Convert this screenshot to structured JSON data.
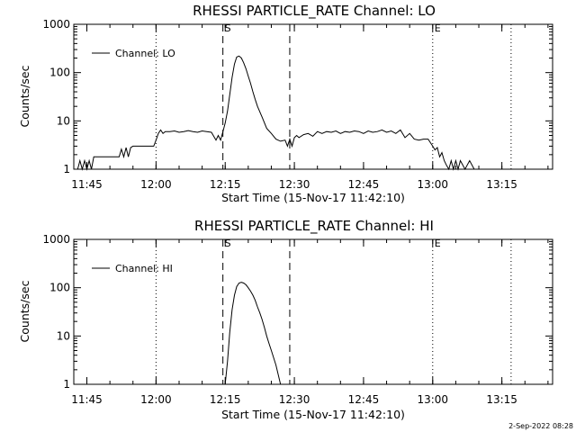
{
  "footer_date": "2-Sep-2022 08:28",
  "chart_data": [
    {
      "type": "line",
      "title": "RHESSI PARTICLE_RATE Channel: LO",
      "xlabel": "Start Time (15-Nov-17 11:42:10)",
      "ylabel": "Counts/sec",
      "y_scale": "log",
      "ylim": [
        1,
        1000
      ],
      "xlim": [
        "11:42:10",
        "13:26:00"
      ],
      "y_ticks": [
        "1",
        "10",
        "100",
        "1000"
      ],
      "x_ticks": [
        "11:45",
        "12:00",
        "12:15",
        "12:30",
        "12:45",
        "13:00",
        "13:15"
      ],
      "legend": {
        "label": "Channel: LO",
        "placement": "top-left"
      },
      "markers": [
        {
          "time": "12:00:00",
          "style": "dotted",
          "label": ""
        },
        {
          "time": "12:14:30",
          "style": "dashed",
          "label": "S"
        },
        {
          "time": "12:29:00",
          "style": "dashed",
          "label": ""
        },
        {
          "time": "13:00:00",
          "style": "dotted",
          "label": "E"
        },
        {
          "time": "13:17:00",
          "style": "dotted",
          "label": ""
        }
      ],
      "series": [
        {
          "name": "Channel: LO",
          "x": [
            "11:43:00",
            "11:43:30",
            "11:44:00",
            "11:44:30",
            "11:45:00",
            "11:45:30",
            "11:46:00",
            "11:46:30",
            "11:47:00",
            "11:50:00",
            "11:52:00",
            "11:52:30",
            "11:53:00",
            "11:53:30",
            "11:54:00",
            "11:54:30",
            "11:55:00",
            "11:59:30",
            "12:00:00",
            "12:00:30",
            "12:01:00",
            "12:01:30",
            "12:02:00",
            "12:03:00",
            "12:04:00",
            "12:05:00",
            "12:06:00",
            "12:07:00",
            "12:08:00",
            "12:09:00",
            "12:10:00",
            "12:11:00",
            "12:12:00",
            "12:13:00",
            "12:13:30",
            "12:14:00",
            "12:14:30",
            "12:15:00",
            "12:15:30",
            "12:16:00",
            "12:16:30",
            "12:17:00",
            "12:17:30",
            "12:18:00",
            "12:18:30",
            "12:19:00",
            "12:19:30",
            "12:20:00",
            "12:20:30",
            "12:21:00",
            "12:21:30",
            "12:22:00",
            "12:23:00",
            "12:24:00",
            "12:25:00",
            "12:26:00",
            "12:27:00",
            "12:28:00",
            "12:28:30",
            "12:29:00",
            "12:29:30",
            "12:30:00",
            "12:30:30",
            "12:31:00",
            "12:32:00",
            "12:33:00",
            "12:34:00",
            "12:35:00",
            "12:36:00",
            "12:37:00",
            "12:38:00",
            "12:39:00",
            "12:40:00",
            "12:41:00",
            "12:42:00",
            "12:43:00",
            "12:44:00",
            "12:45:00",
            "12:46:00",
            "12:47:00",
            "12:48:00",
            "12:49:00",
            "12:50:00",
            "12:51:00",
            "12:52:00",
            "12:53:00",
            "12:54:00",
            "12:55:00",
            "12:56:00",
            "12:57:00",
            "12:58:00",
            "12:59:00",
            "13:00:00",
            "13:00:30",
            "13:01:00",
            "13:01:30",
            "13:02:00",
            "13:02:30",
            "13:03:00",
            "13:03:30",
            "13:04:00",
            "13:04:30",
            "13:05:00",
            "13:05:30",
            "13:06:00",
            "13:07:00",
            "13:08:00",
            "13:09:00",
            "13:10:00"
          ],
          "y": [
            1,
            1.5,
            1,
            1.5,
            1,
            1.5,
            1,
            1.8,
            1.8,
            1.8,
            1.8,
            2.6,
            1.8,
            2.8,
            1.8,
            2.8,
            3,
            3,
            4,
            5.5,
            6.5,
            5.5,
            6,
            6,
            6.2,
            5.8,
            6,
            6.3,
            6,
            5.8,
            6.2,
            6,
            5.8,
            4,
            5,
            4,
            6,
            9,
            16,
            35,
            80,
            150,
            210,
            220,
            200,
            160,
            120,
            85,
            60,
            40,
            28,
            20,
            12,
            7,
            5.5,
            4.2,
            3.8,
            4,
            3,
            4.2,
            3,
            4.5,
            5,
            4.5,
            5.2,
            5.5,
            4.8,
            6,
            5.5,
            6,
            5.8,
            6.2,
            5.5,
            6,
            5.8,
            6.2,
            6,
            5.5,
            6.2,
            5.8,
            6,
            6.5,
            5.8,
            6.2,
            5.5,
            6.5,
            4.5,
            5.5,
            4.2,
            4,
            4.2,
            4.2,
            3,
            2.5,
            2.8,
            1.8,
            2.2,
            1.5,
            1.2,
            1,
            1.5,
            1,
            1.5,
            1,
            1.5,
            1,
            1.5,
            1,
            1
          ]
        }
      ]
    },
    {
      "type": "line",
      "title": "RHESSI PARTICLE_RATE Channel: HI",
      "xlabel": "Start Time (15-Nov-17 11:42:10)",
      "ylabel": "Counts/sec",
      "y_scale": "log",
      "ylim": [
        1,
        1000
      ],
      "xlim": [
        "11:42:10",
        "13:26:00"
      ],
      "y_ticks": [
        "1",
        "10",
        "100",
        "1000"
      ],
      "x_ticks": [
        "11:45",
        "12:00",
        "12:15",
        "12:30",
        "12:45",
        "13:00",
        "13:15"
      ],
      "legend": {
        "label": "Channel: HI",
        "placement": "top-left"
      },
      "markers": [
        {
          "time": "12:00:00",
          "style": "dotted",
          "label": ""
        },
        {
          "time": "12:14:30",
          "style": "dashed",
          "label": "S"
        },
        {
          "time": "12:29:00",
          "style": "dashed",
          "label": ""
        },
        {
          "time": "13:00:00",
          "style": "dotted",
          "label": "E"
        },
        {
          "time": "13:17:00",
          "style": "dotted",
          "label": ""
        }
      ],
      "series": [
        {
          "name": "Channel: HI",
          "x": [
            "12:15:00",
            "12:15:30",
            "12:16:00",
            "12:16:30",
            "12:17:00",
            "12:17:30",
            "12:18:00",
            "12:18:30",
            "12:19:00",
            "12:19:30",
            "12:20:00",
            "12:20:30",
            "12:21:00",
            "12:21:30",
            "12:22:00",
            "12:22:30",
            "12:23:00",
            "12:23:30",
            "12:24:00",
            "12:24:30",
            "12:25:00",
            "12:26:00",
            "12:27:00"
          ],
          "y": [
            1,
            3,
            12,
            35,
            70,
            105,
            125,
            130,
            125,
            115,
            100,
            85,
            70,
            55,
            40,
            30,
            22,
            15,
            10,
            7,
            5,
            2.5,
            1
          ]
        }
      ]
    }
  ]
}
